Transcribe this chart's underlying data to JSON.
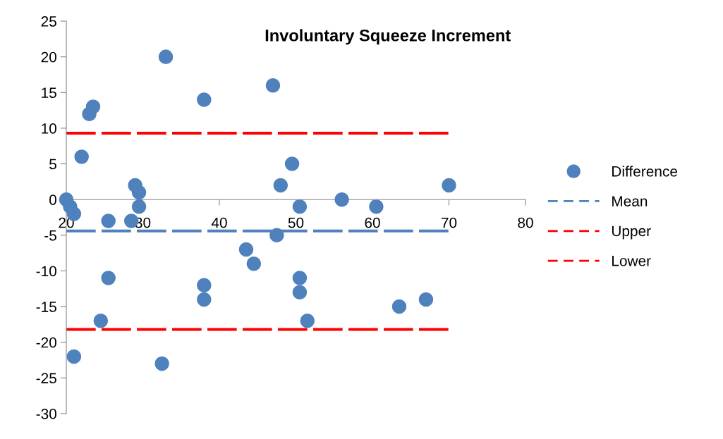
{
  "chart_data": {
    "type": "scatter",
    "title": "Involuntary Squeeze Increment",
    "xlim": [
      20,
      80
    ],
    "ylim": [
      -30,
      25
    ],
    "xticks": [
      20,
      30,
      40,
      50,
      60,
      70,
      80
    ],
    "yticks": [
      -30,
      -25,
      -20,
      -15,
      -10,
      -5,
      0,
      5,
      10,
      15,
      20,
      25
    ],
    "grid": false,
    "legend": "right",
    "series": [
      {
        "name": "Difference",
        "marker": "circle",
        "color": "#4f81bd",
        "x": [
          20,
          20.5,
          21,
          22,
          23,
          23.5,
          29,
          29.5,
          29.5,
          25.5,
          28.5,
          33,
          38,
          47,
          49.5,
          48,
          50.5,
          56,
          60.5,
          70,
          47.5,
          43.5,
          44.5,
          25.5,
          24.5,
          21,
          32.5,
          38,
          38,
          50.5,
          50.5,
          51.5,
          63.5,
          67
        ],
        "values": [
          0,
          -1,
          -2,
          6,
          12,
          13,
          2,
          1,
          -1,
          -3,
          -3,
          20,
          14,
          16,
          5,
          2,
          -1,
          0,
          -1,
          2,
          -5,
          -7,
          -9,
          -11,
          -17,
          -22,
          -23,
          -12,
          -14,
          -11,
          -13,
          -17,
          -15,
          -14
        ]
      },
      {
        "name": "Mean",
        "type": "line",
        "color": "#4f81bd",
        "line_style": "dashed",
        "x": [
          20,
          70
        ],
        "values": [
          -4.4,
          -4.4
        ]
      },
      {
        "name": "Upper",
        "type": "line",
        "color": "#ff0000",
        "line_style": "dashed",
        "x": [
          20,
          70
        ],
        "values": [
          9.3,
          9.3
        ]
      },
      {
        "name": "Lower",
        "type": "line",
        "color": "#ff0000",
        "line_style": "dashed",
        "x": [
          20,
          70
        ],
        "values": [
          -18.2,
          -18.2
        ]
      }
    ]
  }
}
